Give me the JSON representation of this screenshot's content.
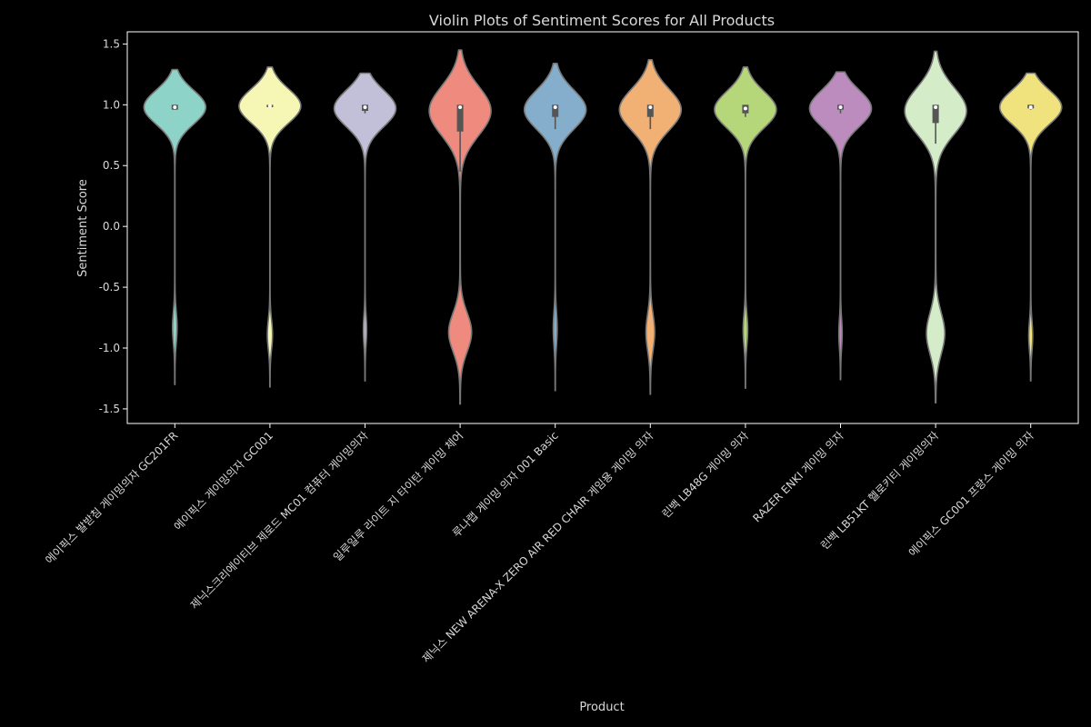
{
  "chart_data": {
    "type": "violin",
    "title": "Violin Plots of Sentiment Scores for All Products",
    "xlabel": "Product",
    "ylabel": "Sentiment Score",
    "ylim": [
      -1.62,
      1.6
    ],
    "yticks": [
      1.5,
      1.0,
      0.5,
      0.0,
      -0.5,
      -1.0,
      -1.5
    ],
    "ytick_labels": [
      "1.5",
      "1.0",
      "0.5",
      "0.0",
      "-0.5",
      "-1.0",
      "-1.5"
    ],
    "grid": false,
    "categories": [
      "에이픽스 발받침 게이밍의자 GC201FR",
      "에이픽스 게이밍의자 GC001",
      "제닉스크리에이티브 제로드 MC01 컴퓨터 게이밍의자",
      "일루일루 라이트 지 타이탄 게이밍 체어",
      "루나랩 게이밍 의자 001 Basic",
      "제닉스 NEW ARENA-X ZERO AIR RED CHAIR 게임용 게이밍 의자",
      "린백 LB48G 게이밍 의자",
      "RAZER ENKI 게이밍 의자",
      "린백 LB51KT 헬로키티 게이밍의자",
      "에이픽스 GC001 프랑스 게이밍 의자"
    ],
    "colors": [
      "#8dd3c7",
      "#ffffb3",
      "#bebada",
      "#fb8072",
      "#80b1d3",
      "#fdb462",
      "#b3de69",
      "#fccde5",
      "#d9d9d9",
      "#ffed6f"
    ],
    "palette_rendered": [
      "#8dd3c7",
      "#f7f7b5",
      "#c2bfd8",
      "#ef8a7e",
      "#85aecd",
      "#f1b074",
      "#b5d77a",
      "#bb8cbd",
      "#d4ecc8",
      "#f0e27c"
    ],
    "violins": [
      {
        "min": -1.3,
        "max": 1.29,
        "q1": 0.96,
        "median": 0.98,
        "q3": 1.0,
        "whisk_lo": 0.96,
        "whisk_hi": 1.0,
        "main_center": 0.98,
        "main_spread": 0.14,
        "main_w": 1.0,
        "neg_center": -0.83,
        "neg_spread": 0.13,
        "neg_w": 0.07
      },
      {
        "min": -1.32,
        "max": 1.31,
        "q1": 0.98,
        "median": 0.99,
        "q3": 1.0,
        "whisk_lo": 0.98,
        "whisk_hi": 1.0,
        "main_center": 0.99,
        "main_spread": 0.14,
        "main_w": 1.0,
        "neg_center": -0.89,
        "neg_spread": 0.12,
        "neg_w": 0.08
      },
      {
        "min": -1.27,
        "max": 1.26,
        "q1": 0.95,
        "median": 0.98,
        "q3": 1.0,
        "whisk_lo": 0.93,
        "whisk_hi": 1.0,
        "main_center": 0.97,
        "main_spread": 0.15,
        "main_w": 1.0,
        "neg_center": -0.85,
        "neg_spread": 0.12,
        "neg_w": 0.05
      },
      {
        "min": -1.46,
        "max": 1.45,
        "q1": 0.78,
        "median": 0.98,
        "q3": 1.0,
        "whisk_lo": 0.45,
        "whisk_hi": 1.0,
        "main_center": 0.95,
        "main_spread": 0.2,
        "main_w": 0.68,
        "neg_center": -0.87,
        "neg_spread": 0.16,
        "neg_w": 0.25
      },
      {
        "min": -1.35,
        "max": 1.34,
        "q1": 0.9,
        "median": 0.98,
        "q3": 1.0,
        "whisk_lo": 0.8,
        "whisk_hi": 1.0,
        "main_center": 0.96,
        "main_spread": 0.16,
        "main_w": 1.0,
        "neg_center": -0.84,
        "neg_spread": 0.14,
        "neg_w": 0.06
      },
      {
        "min": -1.38,
        "max": 1.37,
        "q1": 0.9,
        "median": 0.98,
        "q3": 1.0,
        "whisk_lo": 0.8,
        "whisk_hi": 1.0,
        "main_center": 0.96,
        "main_spread": 0.17,
        "main_w": 0.95,
        "neg_center": -0.87,
        "neg_spread": 0.15,
        "neg_w": 0.13
      },
      {
        "min": -1.33,
        "max": 1.31,
        "q1": 0.93,
        "median": 0.97,
        "q3": 1.0,
        "whisk_lo": 0.9,
        "whisk_hi": 1.0,
        "main_center": 0.96,
        "main_spread": 0.15,
        "main_w": 1.0,
        "neg_center": -0.85,
        "neg_spread": 0.13,
        "neg_w": 0.07
      },
      {
        "min": -1.26,
        "max": 1.27,
        "q1": 0.96,
        "median": 0.98,
        "q3": 1.0,
        "whisk_lo": 0.93,
        "whisk_hi": 1.0,
        "main_center": 0.97,
        "main_spread": 0.15,
        "main_w": 1.0,
        "neg_center": -0.88,
        "neg_spread": 0.12,
        "neg_w": 0.05
      },
      {
        "min": -1.45,
        "max": 1.44,
        "q1": 0.85,
        "median": 0.98,
        "q3": 1.0,
        "whisk_lo": 0.68,
        "whisk_hi": 1.0,
        "main_center": 0.95,
        "main_spread": 0.19,
        "main_w": 0.55,
        "neg_center": -0.88,
        "neg_spread": 0.17,
        "neg_w": 0.16
      },
      {
        "min": -1.27,
        "max": 1.26,
        "q1": 0.97,
        "median": 0.98,
        "q3": 1.0,
        "whisk_lo": 0.96,
        "whisk_hi": 1.0,
        "main_center": 0.98,
        "main_spread": 0.14,
        "main_w": 1.0,
        "neg_center": -0.9,
        "neg_spread": 0.12,
        "neg_w": 0.06
      }
    ]
  }
}
